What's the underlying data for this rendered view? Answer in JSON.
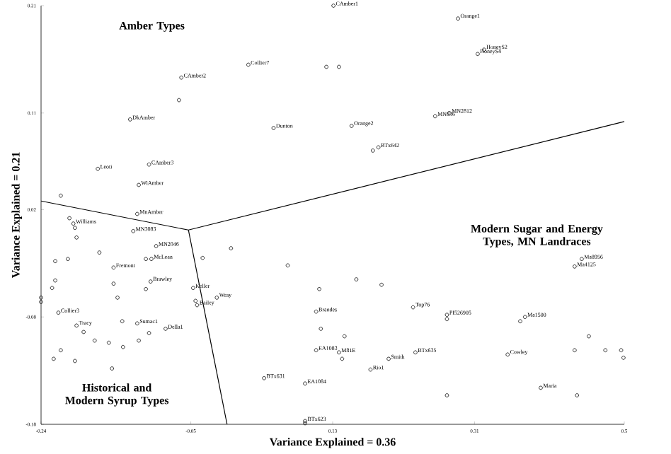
{
  "chart_data": {
    "type": "scatter",
    "xlabel": "Variance Explained = 0.36",
    "ylabel": "Variance Explained = 0.21",
    "xlim": [
      -0.24,
      0.5
    ],
    "ylim": [
      -0.18,
      0.21
    ],
    "xticks": [
      -0.24,
      -0.05,
      0.13,
      0.31,
      0.5
    ],
    "yticks": [
      -0.18,
      -0.08,
      0.02,
      0.11,
      0.21
    ],
    "series": [
      {
        "type": "scatter",
        "marker": "circle",
        "color": "#000000",
        "x": [
          0.131,
          0.289,
          0.023,
          0.122,
          0.138,
          0.322,
          0.314,
          -0.062,
          -0.065,
          -0.127,
          0.055,
          0.154,
          0.278,
          0.26,
          0.181,
          0.188,
          -0.168,
          -0.103,
          -0.116,
          -0.215,
          -0.118,
          -0.204,
          -0.199,
          -0.197,
          -0.195,
          -0.123,
          -0.094,
          -0.1,
          -0.222,
          -0.206,
          -0.166,
          -0.148,
          -0.107,
          -0.222,
          -0.226,
          -0.24,
          -0.24,
          -0.101,
          -0.107,
          -0.148,
          -0.143,
          -0.047,
          -0.017,
          -0.044,
          -0.042,
          -0.218,
          -0.137,
          -0.118,
          -0.082,
          -0.103,
          -0.195,
          -0.186,
          -0.224,
          -0.215,
          -0.197,
          -0.172,
          -0.154,
          -0.136,
          -0.116,
          -0.15,
          -0.035,
          0.001,
          0.073,
          0.113,
          0.109,
          0.115,
          0.109,
          0.043,
          0.095,
          0.095,
          0.095,
          0.446,
          0.437,
          0.16,
          0.192,
          0.232,
          0.275,
          0.275,
          0.374,
          0.368,
          0.455,
          0.437,
          0.476,
          0.496,
          0.499,
          0.352,
          0.235,
          0.201,
          0.178,
          0.145,
          0.138,
          0.142,
          0.275,
          0.394,
          0.44
        ],
        "values": [
          0.21,
          0.198,
          0.155,
          0.153,
          0.153,
          0.169,
          0.165,
          0.143,
          0.122,
          0.104,
          0.096,
          0.098,
          0.11,
          0.107,
          0.075,
          0.078,
          0.058,
          0.062,
          0.043,
          0.033,
          0.016,
          0.012,
          0.007,
          0.003,
          -0.006,
          0.0,
          -0.014,
          -0.026,
          -0.028,
          -0.026,
          -0.02,
          -0.034,
          -0.026,
          -0.046,
          -0.053,
          -0.062,
          -0.066,
          -0.047,
          -0.054,
          -0.049,
          -0.062,
          -0.053,
          -0.062,
          -0.065,
          -0.069,
          -0.076,
          -0.084,
          -0.086,
          -0.091,
          -0.095,
          -0.088,
          -0.094,
          -0.119,
          -0.111,
          -0.121,
          -0.102,
          -0.104,
          -0.108,
          -0.102,
          -0.128,
          -0.025,
          -0.016,
          -0.032,
          -0.054,
          -0.075,
          -0.091,
          -0.111,
          -0.137,
          -0.142,
          -0.177,
          -0.179,
          -0.026,
          -0.033,
          -0.045,
          -0.05,
          -0.071,
          -0.078,
          -0.082,
          -0.08,
          -0.084,
          -0.098,
          -0.111,
          -0.111,
          -0.111,
          -0.118,
          -0.115,
          -0.113,
          -0.119,
          -0.129,
          -0.098,
          -0.113,
          -0.119,
          -0.153,
          -0.146,
          -0.153
        ]
      },
      {
        "type": "line",
        "color": "#000000",
        "x": [
          -0.24,
          -0.053,
          0.5
        ],
        "values": [
          0.028,
          0.001,
          0.102
        ]
      },
      {
        "type": "line",
        "color": "#000000",
        "x": [
          -0.053,
          -0.004
        ],
        "values": [
          0.001,
          -0.18
        ]
      }
    ],
    "annotations": [
      "Amber Types",
      "Modern Sugar and Energy Types, MN Landraces",
      "Historical and Modern Syrup Types",
      {
        "text": "CAmber1",
        "x": 0.131,
        "y": 0.21
      },
      {
        "text": "Orange1",
        "x": 0.289,
        "y": 0.198
      },
      {
        "text": "Collier7",
        "x": 0.023,
        "y": 0.155
      },
      {
        "text": "HoneyS2",
        "x": 0.322,
        "y": 0.169
      },
      {
        "text": "HoneyS4",
        "x": 0.314,
        "y": 0.165
      },
      {
        "text": "CAmber2",
        "x": -0.062,
        "y": 0.143
      },
      {
        "text": "DkAmber",
        "x": -0.127,
        "y": 0.104
      },
      {
        "text": "Dunton",
        "x": 0.055,
        "y": 0.096
      },
      {
        "text": "Orange2",
        "x": 0.154,
        "y": 0.098
      },
      {
        "text": "MN2812",
        "x": 0.278,
        "y": 0.11
      },
      {
        "text": "MN836",
        "x": 0.26,
        "y": 0.107
      },
      {
        "text": "BTx642",
        "x": 0.188,
        "y": 0.078
      },
      {
        "text": "Leoti",
        "x": -0.168,
        "y": 0.058
      },
      {
        "text": "CAmber3",
        "x": -0.103,
        "y": 0.062
      },
      {
        "text": "WiAmber",
        "x": -0.116,
        "y": 0.043
      },
      {
        "text": "MnAmber",
        "x": -0.118,
        "y": 0.016
      },
      {
        "text": "Williams",
        "x": -0.199,
        "y": 0.007
      },
      {
        "text": "MN3083",
        "x": -0.123,
        "y": 0.0
      },
      {
        "text": "MN2046",
        "x": -0.094,
        "y": -0.014
      },
      {
        "text": "McLean",
        "x": -0.1,
        "y": -0.026
      },
      {
        "text": "Fremont",
        "x": -0.148,
        "y": -0.034
      },
      {
        "text": "Brawley",
        "x": -0.101,
        "y": -0.047
      },
      {
        "text": "Keller",
        "x": -0.047,
        "y": -0.053
      },
      {
        "text": "Wray",
        "x": -0.017,
        "y": -0.062
      },
      {
        "text": "Bailey",
        "x": -0.042,
        "y": -0.069
      },
      {
        "text": "Collier3",
        "x": -0.218,
        "y": -0.076
      },
      {
        "text": "Sumac1",
        "x": -0.118,
        "y": -0.086
      },
      {
        "text": "Della1",
        "x": -0.082,
        "y": -0.091
      },
      {
        "text": "Tracy",
        "x": -0.195,
        "y": -0.088
      },
      {
        "text": "Brandes",
        "x": 0.109,
        "y": -0.075
      },
      {
        "text": "EA1083",
        "x": 0.109,
        "y": -0.111
      },
      {
        "text": "BTx631",
        "x": 0.043,
        "y": -0.137
      },
      {
        "text": "EA1084",
        "x": 0.095,
        "y": -0.142
      },
      {
        "text": "BTx623",
        "x": 0.095,
        "y": -0.177
      },
      {
        "text": "Ma8956",
        "x": 0.446,
        "y": -0.026
      },
      {
        "text": "Ma4125",
        "x": 0.437,
        "y": -0.033
      },
      {
        "text": "Top76",
        "x": 0.232,
        "y": -0.071
      },
      {
        "text": "PI526905",
        "x": 0.275,
        "y": -0.078
      },
      {
        "text": "Ma1500",
        "x": 0.374,
        "y": -0.08
      },
      {
        "text": "Cowley",
        "x": 0.352,
        "y": -0.115
      },
      {
        "text": "BTx635",
        "x": 0.235,
        "y": -0.113
      },
      {
        "text": "Smith",
        "x": 0.201,
        "y": -0.119
      },
      {
        "text": "Rio1",
        "x": 0.178,
        "y": -0.129
      },
      {
        "text": "M81E",
        "x": 0.138,
        "y": -0.113
      },
      {
        "text": "Maria",
        "x": 0.394,
        "y": -0.146
      }
    ]
  }
}
